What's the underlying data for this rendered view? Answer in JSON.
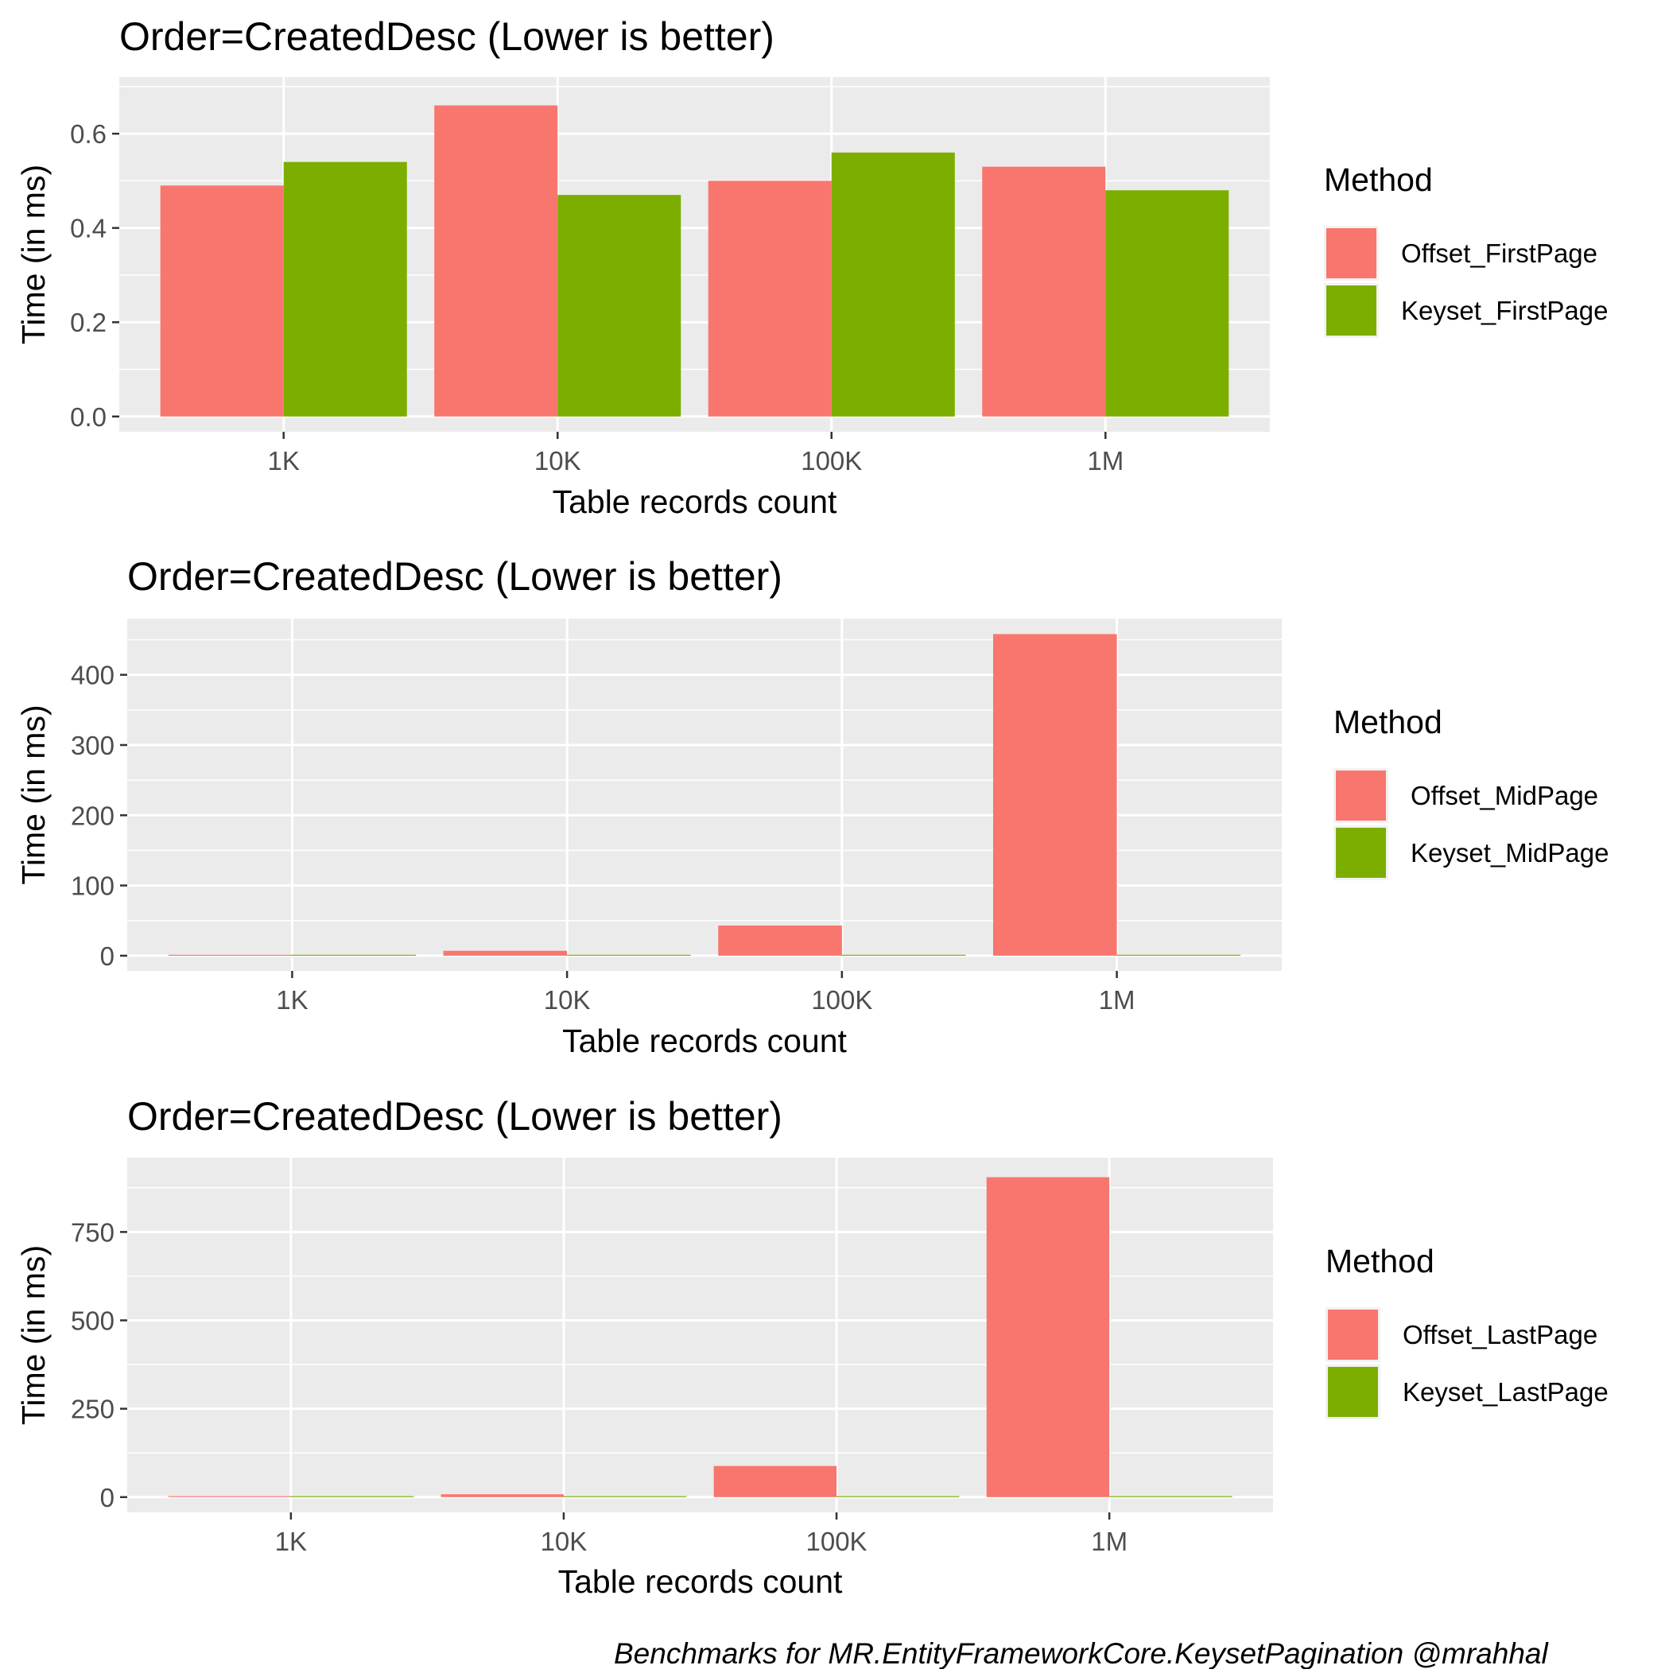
{
  "chart_data": [
    {
      "type": "bar",
      "title": "Order=CreatedDesc (Lower is better)",
      "xlabel": "Table records count",
      "ylabel": "Time (in ms)",
      "categories": [
        "1K",
        "10K",
        "100K",
        "1M"
      ],
      "ylim": [
        0,
        0.72
      ],
      "yticks": [
        0.0,
        0.2,
        0.4,
        0.6
      ],
      "yticklabels": [
        "0.0",
        "0.2",
        "0.4",
        "0.6"
      ],
      "legend_title": "Method",
      "legend_position": "right",
      "series": [
        {
          "name": "Offset_FirstPage",
          "color": "#F8766D",
          "values": [
            0.49,
            0.66,
            0.5,
            0.53
          ]
        },
        {
          "name": "Keyset_FirstPage",
          "color": "#7CAE00",
          "values": [
            0.54,
            0.47,
            0.56,
            0.48
          ]
        }
      ]
    },
    {
      "type": "bar",
      "title": "Order=CreatedDesc (Lower is better)",
      "xlabel": "Table records count",
      "ylabel": "Time (in ms)",
      "categories": [
        "1K",
        "10K",
        "100K",
        "1M"
      ],
      "ylim": [
        0,
        480
      ],
      "yticks": [
        0,
        100,
        200,
        300,
        400
      ],
      "yticklabels": [
        "0",
        "100",
        "200",
        "300",
        "400"
      ],
      "legend_title": "Method",
      "legend_position": "right",
      "series": [
        {
          "name": "Offset_MidPage",
          "color": "#F8766D",
          "values": [
            0.5,
            7,
            43,
            458
          ]
        },
        {
          "name": "Keyset_MidPage",
          "color": "#7CAE00",
          "values": [
            0.6,
            0.6,
            0.6,
            0.6
          ]
        }
      ]
    },
    {
      "type": "bar",
      "title": "Order=CreatedDesc (Lower is better)",
      "xlabel": "Table records count",
      "ylabel": "Time (in ms)",
      "categories": [
        "1K",
        "10K",
        "100K",
        "1M"
      ],
      "ylim": [
        0,
        960
      ],
      "yticks": [
        0,
        250,
        500,
        750
      ],
      "yticklabels": [
        "0",
        "250",
        "500",
        "750"
      ],
      "legend_title": "Method",
      "legend_position": "right",
      "series": [
        {
          "name": "Offset_LastPage",
          "color": "#F8766D",
          "values": [
            1,
            8,
            88,
            905
          ]
        },
        {
          "name": "Keyset_LastPage",
          "color": "#7CAE00",
          "values": [
            0.5,
            0.5,
            0.5,
            0.5
          ]
        }
      ]
    }
  ],
  "caption": "Benchmarks for MR.EntityFrameworkCore.KeysetPagination @mrahhal",
  "colors": {
    "panel_bg": "#EBEBEB",
    "grid": "#FFFFFF",
    "tick_text": "#4D4D4D"
  }
}
